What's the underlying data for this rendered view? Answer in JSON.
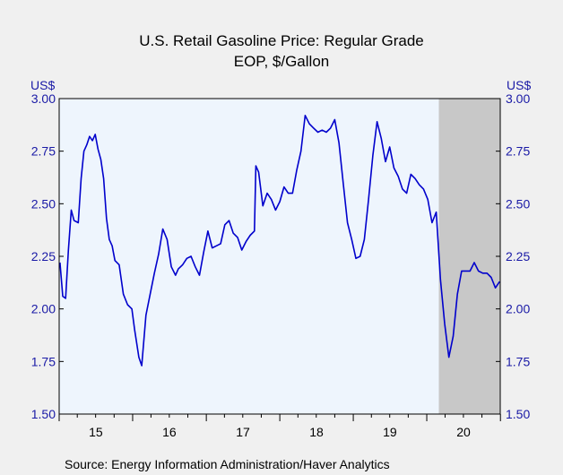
{
  "chart_data": {
    "type": "line",
    "title": "U.S. Retail Gasoline Price: Regular Grade",
    "subtitle": "EOP, $/Gallon",
    "ylabel_left": "US$",
    "ylabel_right": "US$",
    "ylim": [
      1.5,
      3.0
    ],
    "yticks": [
      "3.00",
      "2.75",
      "2.50",
      "2.25",
      "2.00",
      "1.75",
      "1.50"
    ],
    "xticks": [
      "15",
      "16",
      "17",
      "18",
      "19",
      "20"
    ],
    "xlim": [
      "2015-01-01",
      "2020-12-31"
    ],
    "recession": {
      "start": "2020-03-01",
      "end": "2020-12-31"
    },
    "grid": false,
    "colors": {
      "line": "#0000cc",
      "plot_bg": "#eef5fd",
      "recession": "#c8c8c8",
      "axis_text": "#1a1aa6"
    },
    "series": [
      {
        "x": [
          "2015-01-05",
          "2015-01-19",
          "2015-02-02",
          "2015-02-16",
          "2015-03-02",
          "2015-03-16",
          "2015-04-06",
          "2015-04-20",
          "2015-05-04",
          "2015-05-18",
          "2015-06-01",
          "2015-06-15",
          "2015-06-29",
          "2015-07-13",
          "2015-07-27",
          "2015-08-10",
          "2015-08-24",
          "2015-09-07",
          "2015-09-21",
          "2015-10-05",
          "2015-10-26",
          "2015-11-16",
          "2015-12-07",
          "2015-12-28",
          "2016-01-11",
          "2016-02-01",
          "2016-02-15",
          "2016-03-07",
          "2016-03-28",
          "2016-04-18",
          "2016-05-09",
          "2016-05-30",
          "2016-06-20",
          "2016-07-11",
          "2016-08-01",
          "2016-08-15",
          "2016-09-05",
          "2016-09-26",
          "2016-10-17",
          "2016-11-07",
          "2016-11-28",
          "2016-12-19",
          "2017-01-09",
          "2017-01-30",
          "2017-02-20",
          "2017-03-13",
          "2017-04-03",
          "2017-04-24",
          "2017-05-15",
          "2017-06-05",
          "2017-06-26",
          "2017-07-17",
          "2017-08-07",
          "2017-08-28",
          "2017-09-04",
          "2017-09-18",
          "2017-10-09",
          "2017-10-30",
          "2017-11-20",
          "2017-12-11",
          "2018-01-01",
          "2018-01-22",
          "2018-02-12",
          "2018-03-05",
          "2018-03-26",
          "2018-04-16",
          "2018-05-07",
          "2018-05-28",
          "2018-06-18",
          "2018-07-09",
          "2018-07-30",
          "2018-08-20",
          "2018-09-10",
          "2018-10-01",
          "2018-10-22",
          "2018-11-12",
          "2018-12-03",
          "2018-12-24",
          "2019-01-14",
          "2019-02-04",
          "2019-02-25",
          "2019-03-18",
          "2019-04-08",
          "2019-04-29",
          "2019-05-20",
          "2019-06-10",
          "2019-07-01",
          "2019-07-22",
          "2019-08-12",
          "2019-09-02",
          "2019-09-23",
          "2019-10-14",
          "2019-11-04",
          "2019-11-25",
          "2019-12-16",
          "2020-01-06",
          "2020-01-27",
          "2020-02-17",
          "2020-03-09",
          "2020-03-30",
          "2020-04-20",
          "2020-05-11",
          "2020-06-01",
          "2020-06-22",
          "2020-07-13",
          "2020-08-03",
          "2020-08-24",
          "2020-09-14",
          "2020-10-05",
          "2020-10-26",
          "2020-11-16",
          "2020-12-07",
          "2020-12-28"
        ],
        "values": [
          2.22,
          2.06,
          2.05,
          2.28,
          2.47,
          2.42,
          2.41,
          2.62,
          2.75,
          2.78,
          2.82,
          2.8,
          2.83,
          2.76,
          2.71,
          2.62,
          2.43,
          2.33,
          2.3,
          2.23,
          2.21,
          2.07,
          2.02,
          2.0,
          1.9,
          1.77,
          1.73,
          1.97,
          2.07,
          2.17,
          2.26,
          2.38,
          2.33,
          2.2,
          2.16,
          2.19,
          2.21,
          2.24,
          2.25,
          2.2,
          2.16,
          2.27,
          2.37,
          2.29,
          2.3,
          2.31,
          2.4,
          2.42,
          2.36,
          2.34,
          2.28,
          2.32,
          2.35,
          2.37,
          2.68,
          2.65,
          2.49,
          2.55,
          2.52,
          2.47,
          2.51,
          2.58,
          2.55,
          2.55,
          2.66,
          2.75,
          2.92,
          2.88,
          2.86,
          2.84,
          2.85,
          2.84,
          2.86,
          2.9,
          2.79,
          2.6,
          2.41,
          2.33,
          2.24,
          2.25,
          2.33,
          2.52,
          2.73,
          2.89,
          2.81,
          2.7,
          2.77,
          2.67,
          2.63,
          2.57,
          2.55,
          2.64,
          2.62,
          2.59,
          2.57,
          2.52,
          2.41,
          2.46,
          2.14,
          1.93,
          1.77,
          1.87,
          2.07,
          2.18,
          2.18,
          2.18,
          2.22,
          2.18,
          2.17,
          2.17,
          2.15,
          2.1,
          2.13
        ]
      }
    ]
  },
  "source": "Source:  Energy Information Administration/Haver Analytics"
}
